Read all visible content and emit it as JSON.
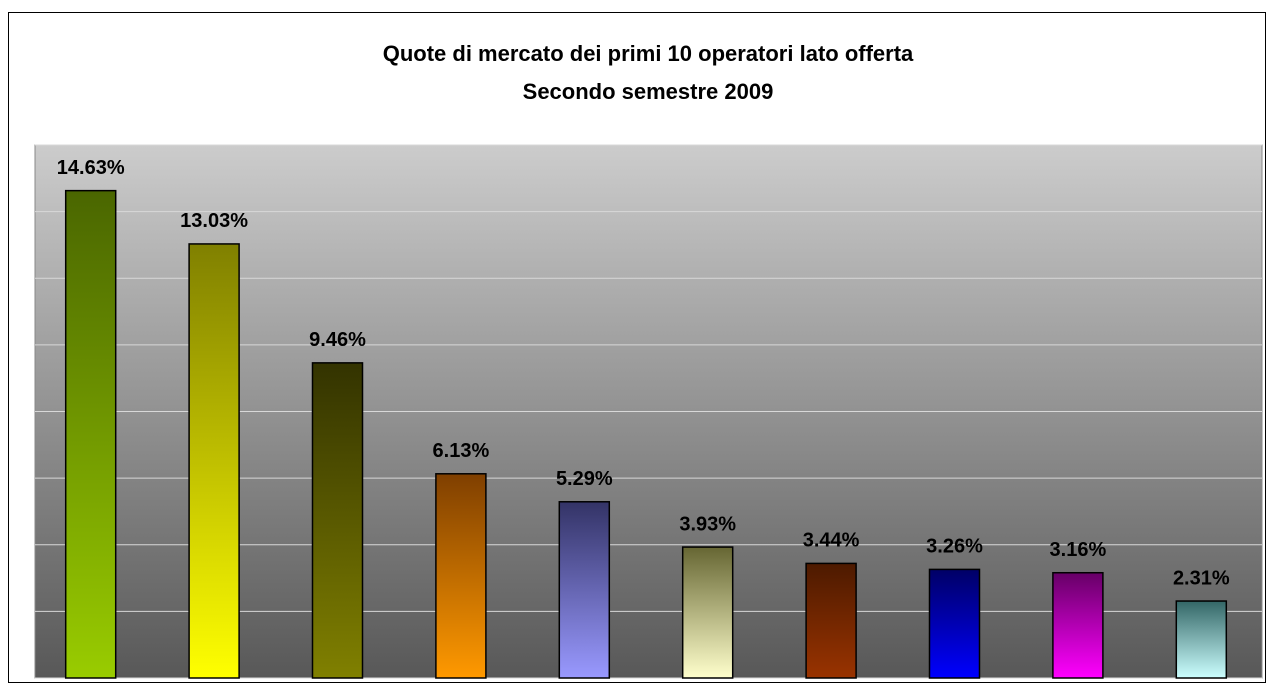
{
  "chart_data": {
    "type": "bar",
    "title": "Quote di mercato dei primi 10 operatori lato offerta",
    "subtitle": "Secondo semestre 2009",
    "values": [
      14.63,
      13.03,
      9.46,
      6.13,
      5.29,
      3.93,
      3.44,
      3.26,
      3.16,
      2.31
    ],
    "value_labels": [
      "14.63%",
      "13.03%",
      "9.46%",
      "6.13%",
      "5.29%",
      "3.93%",
      "3.44%",
      "3.26%",
      "3.16%",
      "2.31%"
    ],
    "colors": [
      {
        "top": "#4a6600",
        "bottom": "#99cc00"
      },
      {
        "top": "#808000",
        "bottom": "#ffff00"
      },
      {
        "top": "#333300",
        "bottom": "#808000"
      },
      {
        "top": "#7f3f00",
        "bottom": "#ff9900"
      },
      {
        "top": "#333366",
        "bottom": "#9999ff"
      },
      {
        "top": "#666633",
        "bottom": "#ffffcc"
      },
      {
        "top": "#4d1a00",
        "bottom": "#993300"
      },
      {
        "top": "#000066",
        "bottom": "#0000ff"
      },
      {
        "top": "#660066",
        "bottom": "#ff00ff"
      },
      {
        "top": "#336666",
        "bottom": "#ccffff"
      }
    ],
    "ylim": [
      0,
      16
    ],
    "yticks": [
      0,
      2,
      4,
      6,
      8,
      10,
      12,
      14,
      16
    ],
    "grid": true
  }
}
